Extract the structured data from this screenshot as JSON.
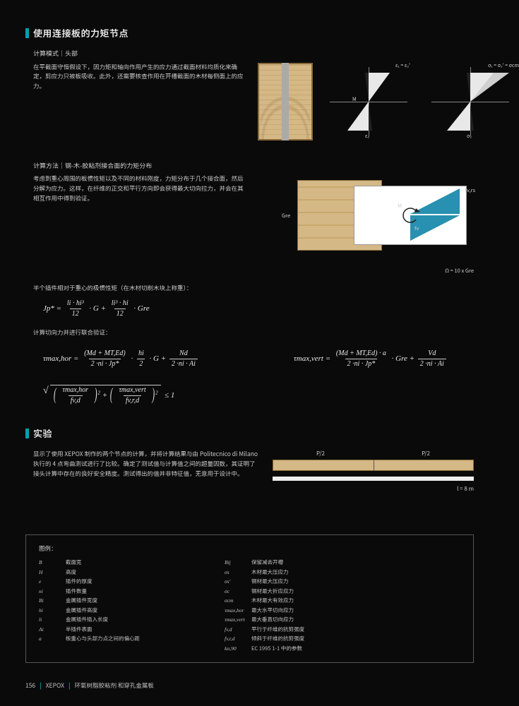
{
  "section1": {
    "title": "使用连接板的力矩节点",
    "sub": "计算模式｜头部",
    "body": "在平截面守恒假设下，因力矩和轴向作用产生的应力通过截面材料均质化来确定，剪应力只被板吸收。此外，还需要核查作用在开槽截面的木材每侧面上的应力。",
    "dia": {
      "M": "M",
      "eps_s": "ε₁ = ε₂'",
      "sig_s": "σ₁ = σ₂' = σcm",
      "eps_b": "ε₂",
      "sig_b": "σ₂"
    }
  },
  "section2": {
    "title": "计算方法｜钢-木-胶粘剂接合面的力矩分布",
    "body": "考虑到重心周围的板惯性矩以及不同的材料刚度，力矩分布于几个接合面，然后分解为应力。这样，在纤维的正交和平行方向即会获得最大切向拉力，并会在其相互作用中得到验证。",
    "labels": {
      "Gre": "Gre",
      "fvrs": "fv,rs",
      "fv": "fv",
      "M": "M",
      "footer": "Ω = 10 x Gre"
    }
  },
  "formulas": {
    "f1_lead": "半个插件相对于重心的极惯性矩（在木材切削木块上称重）：",
    "f1_lhs": "Jp* =",
    "f1_t1_num": "li · hi³",
    "f1_t1_den": "12",
    "f1_g": "· G +",
    "f1_t2_num": "li³ · hi",
    "f1_t2_den": "12",
    "f1_gre": "· Gre",
    "f2_lead": "计算切向力并进行联合验证：",
    "tau_h": "τmax,hor =",
    "tau_h_n1": "(Md + MT,Ed)",
    "tau_h_d1": "2 ·ni · Jp*",
    "tau_h_m1": "·",
    "tau_h_n2": "hi",
    "tau_h_d2": "2",
    "tau_h_m2": "· G +",
    "tau_h_n3": "Nd",
    "tau_h_d3": "2 ·ni · Ai",
    "tau_v": "τmax,vert =",
    "tau_v_n1": "(Md + MT,Ed) · a",
    "tau_v_d1": "2 ·ni · Jp*",
    "tau_v_m1": "· Gre +",
    "tau_v_n2": "Vd",
    "tau_v_d2": "2 ·ni · Ai",
    "verify_n1": "τmax,hor",
    "verify_d1": "fv,d",
    "verify_plus": "+",
    "verify_n2": "τmax,vert",
    "verify_d2": "fv,r,d",
    "verify_tail": "≤ 1"
  },
  "experiment": {
    "title": "实验",
    "body": "显示了使用 XEPOX 制作的两个节点的计算，并将计算结果与由 Politecnico di Milano 执行的 4 点弯曲测试进行了比较。确定了测试值与计算值之间的超量因数，其证明了接头计算中存在的良好安全精度。测试得出的值并非特征值，无意用于设计中。",
    "p2_left": "P/2",
    "p2_right": "P/2",
    "span": "l = 8 m"
  },
  "legend": {
    "title": "图例：",
    "left": [
      {
        "s": "B",
        "d": "截面宽"
      },
      {
        "s": "H",
        "d": "高度"
      },
      {
        "s": "e",
        "d": "插件的厚度"
      },
      {
        "s": "ni",
        "d": "插件数量"
      },
      {
        "s": "Bi",
        "d": "金属插件宽度"
      },
      {
        "s": "hi",
        "d": "金属插件高度"
      },
      {
        "s": "li",
        "d": "金属插件插入长度"
      },
      {
        "s": "Ai",
        "d": "半插件表面"
      },
      {
        "s": "a",
        "d": "板重心与头部力点之间的偏心距"
      }
    ],
    "right": [
      {
        "s": "Bij",
        "d": "保留减去开槽"
      },
      {
        "s": "σs",
        "d": "木材最大压应力"
      },
      {
        "s": "σs'",
        "d": "钢材最大压应力"
      },
      {
        "s": "σc",
        "d": "钢材最大折应应力"
      },
      {
        "s": "σcm",
        "d": "木材最大有效应力"
      },
      {
        "s": "τmax,hor",
        "d": "最大水平切向应力"
      },
      {
        "s": "τmax,vert",
        "d": "最大垂直切向应力"
      },
      {
        "s": "fv,d",
        "d": "平行于纤维的抗剪强度"
      },
      {
        "s": "fv,r,d",
        "d": "倾斜于纤维的抗剪强度"
      },
      {
        "s": "kα,90",
        "d": "EC 1995 1-1 中的参数"
      }
    ]
  },
  "footer": {
    "page": "156",
    "brand": "XEPOX",
    "desc": "环氧树脂胶粘剂 和穿孔金属板"
  }
}
